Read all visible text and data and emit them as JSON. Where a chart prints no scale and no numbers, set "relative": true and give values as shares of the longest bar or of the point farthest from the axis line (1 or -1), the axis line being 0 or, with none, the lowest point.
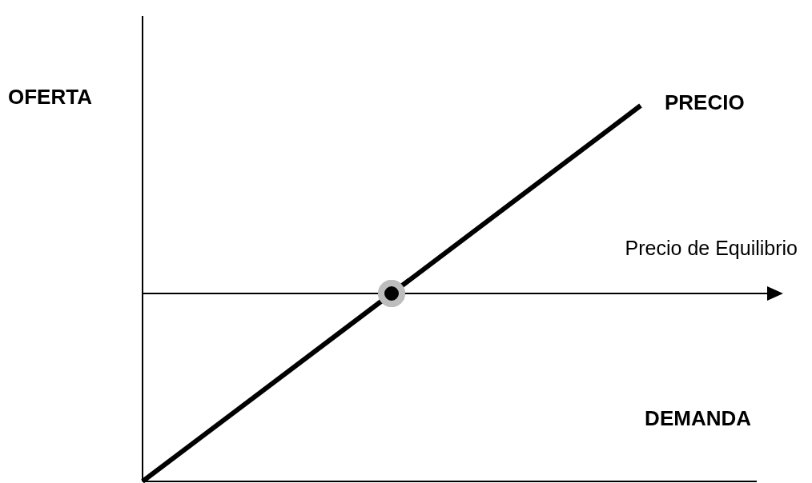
{
  "chart_data": {
    "type": "line",
    "relative": true,
    "ylabel": "OFERTA",
    "xlabel": "DEMANDA",
    "categories": [
      null,
      null,
      null
    ],
    "series": [
      {
        "name": "PRECIO",
        "color": "#000000",
        "values": [
          0,
          0.5,
          1
        ]
      }
    ],
    "ref_lines": [
      {
        "axis": "y",
        "value": 0.5,
        "label": "Precio de Equilibrio",
        "color": "#000000"
      }
    ]
  }
}
